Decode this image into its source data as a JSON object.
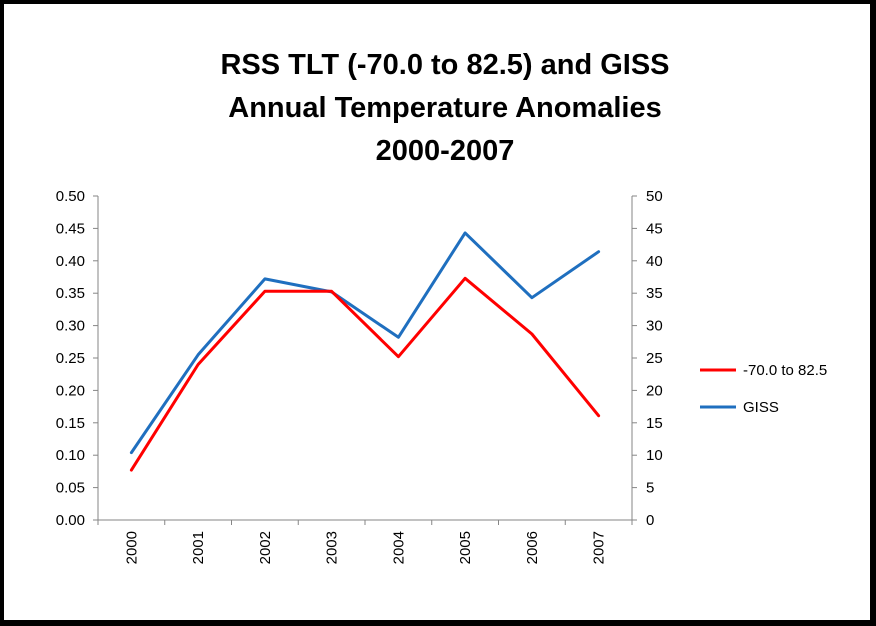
{
  "chart_data": {
    "type": "line",
    "title": [
      "RSS TLT (-70.0 to 82.5) and GISS",
      "Annual Temperature Anomalies",
      "2000-2007"
    ],
    "categories": [
      "2000",
      "2001",
      "2002",
      "2003",
      "2004",
      "2005",
      "2006",
      "2007"
    ],
    "series": [
      {
        "name": "-70.0 to 82.5",
        "axis": "left",
        "color": "#ff0000",
        "values": [
          0.077,
          0.24,
          0.353,
          0.353,
          0.252,
          0.373,
          0.287,
          0.161
        ]
      },
      {
        "name": "GISS",
        "axis": "right",
        "color": "#1f6fbf",
        "values": [
          10.4,
          25.5,
          37.2,
          35.2,
          28.2,
          44.3,
          34.3,
          41.4
        ]
      }
    ],
    "y_left": {
      "ylim": [
        0,
        0.5
      ],
      "ticks": [
        "0.00",
        "0.05",
        "0.10",
        "0.15",
        "0.20",
        "0.25",
        "0.30",
        "0.35",
        "0.40",
        "0.45",
        "0.50"
      ]
    },
    "y_right": {
      "ylim": [
        0,
        50
      ],
      "ticks": [
        "0",
        "5",
        "10",
        "15",
        "20",
        "25",
        "30",
        "35",
        "40",
        "45",
        "50"
      ]
    },
    "grid": false,
    "legend_position": "right"
  }
}
